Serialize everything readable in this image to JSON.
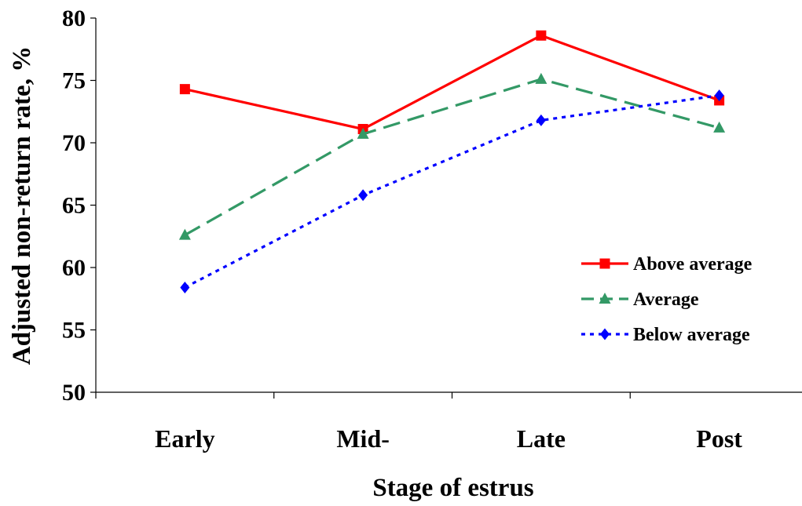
{
  "chart_data": {
    "type": "line",
    "title": "",
    "xlabel": "Stage of estrus",
    "ylabel": "Adjusted non-return rate, %",
    "categories": [
      "Early",
      "Mid-",
      "Late",
      "Post"
    ],
    "ylim": [
      50,
      80
    ],
    "yticks": [
      50,
      55,
      60,
      65,
      70,
      75,
      80
    ],
    "grid": false,
    "legend_position": "right",
    "series": [
      {
        "name": "Above average",
        "values": [
          74.3,
          71.1,
          78.6,
          73.4
        ],
        "color": "#ff0000",
        "marker": "square",
        "line_style": "solid"
      },
      {
        "name": "Average",
        "values": [
          62.6,
          70.7,
          75.1,
          71.2
        ],
        "color": "#339966",
        "marker": "triangle",
        "line_style": "dashed"
      },
      {
        "name": "Below average",
        "values": [
          58.4,
          65.8,
          71.8,
          73.8
        ],
        "color": "#0000ff",
        "marker": "diamond",
        "line_style": "dotted"
      }
    ]
  }
}
